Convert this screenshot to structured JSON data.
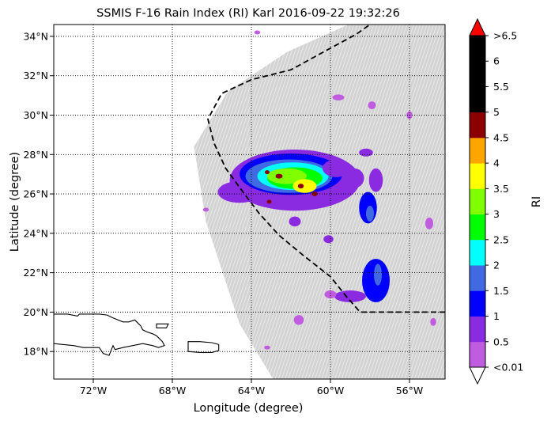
{
  "chart_data": {
    "type": "map",
    "title": "SSMIS F-16 Rain Index (RI) Karl 2016-09-22 19:32:26",
    "xlabel": "Longitude (degree)",
    "ylabel": "Latitude (degree)",
    "xlim": [
      -74,
      -54.2
    ],
    "ylim": [
      16.6,
      34.6
    ],
    "x_ticks": [
      {
        "value": -72,
        "label": "72°W"
      },
      {
        "value": -68,
        "label": "68°W"
      },
      {
        "value": -64,
        "label": "64°W"
      },
      {
        "value": -60,
        "label": "60°W"
      },
      {
        "value": -56,
        "label": "56°W"
      }
    ],
    "y_ticks": [
      {
        "value": 18,
        "label": "18°N"
      },
      {
        "value": 20,
        "label": "20°N"
      },
      {
        "value": 22,
        "label": "22°N"
      },
      {
        "value": 24,
        "label": "24°N"
      },
      {
        "value": 26,
        "label": "26°N"
      },
      {
        "value": 28,
        "label": "28°N"
      },
      {
        "value": 30,
        "label": "30°N"
      },
      {
        "value": 32,
        "label": "32°N"
      },
      {
        "value": 34,
        "label": "34°N"
      }
    ],
    "grid": true,
    "colorbar": {
      "label": "RI",
      "levels": [
        0.01,
        0.5,
        1,
        1.5,
        2,
        2.5,
        3,
        3.5,
        4,
        4.5,
        5,
        5.5,
        6,
        6.5
      ],
      "tick_labels": [
        "<0.01",
        "0.5",
        "1",
        "1.5",
        "2",
        "2.5",
        "3",
        "3.5",
        "4",
        "4.5",
        "5",
        "5.5",
        "6",
        ">6.5"
      ],
      "colors": [
        "#c05ce0",
        "#8a2be2",
        "#0000ff",
        "#4169e1",
        "#00ffff",
        "#00ff00",
        "#7fff00",
        "#ffff00",
        "#ffa500",
        "#8b0000",
        "#000000",
        "#000000",
        "#000000"
      ],
      "under_color": "#ffffff",
      "over_color": "#ff0000"
    },
    "swath_color": "#d3d3d3",
    "swath_outline": [
      [
        -66.9,
        28.4
      ],
      [
        -65.2,
        31.2
      ],
      [
        -62.2,
        33.2
      ],
      [
        -59.1,
        34.6
      ],
      [
        -54.2,
        34.6
      ],
      [
        -54.2,
        16.6
      ],
      [
        -62.9,
        16.6
      ],
      [
        -64.6,
        19.4
      ],
      [
        -66.3,
        24.6
      ]
    ],
    "track": [
      [
        -54.2,
        20.0
      ],
      [
        -58.5,
        20.0
      ],
      [
        -59.2,
        20.8
      ],
      [
        -60.0,
        21.8
      ],
      [
        -61.4,
        22.9
      ],
      [
        -62.6,
        23.9
      ],
      [
        -63.6,
        25.0
      ],
      [
        -64.5,
        26.2
      ],
      [
        -65.3,
        27.3
      ],
      [
        -65.9,
        28.6
      ],
      [
        -66.2,
        29.8
      ],
      [
        -65.5,
        31.1
      ],
      [
        -64.0,
        31.8
      ],
      [
        -62.0,
        32.3
      ],
      [
        -60.0,
        33.4
      ],
      [
        -58.7,
        34.1
      ],
      [
        -58.0,
        34.6
      ]
    ],
    "rain_cells": [
      {
        "lon": -61.8,
        "lat": 26.7,
        "ri": 0.7,
        "rx": 3.3,
        "ry": 1.55
      },
      {
        "lon": -64.6,
        "lat": 26.1,
        "ri": 0.7,
        "rx": 1.1,
        "ry": 0.55
      },
      {
        "lon": -62.0,
        "lat": 27.0,
        "ri": 1.2,
        "rx": 2.6,
        "ry": 1.05
      },
      {
        "lon": -62.1,
        "lat": 26.9,
        "ri": 1.7,
        "rx": 2.2,
        "ry": 0.85
      },
      {
        "lon": -61.9,
        "lat": 26.9,
        "ri": 2.2,
        "rx": 1.8,
        "ry": 0.7
      },
      {
        "lon": -61.8,
        "lat": 26.8,
        "ri": 2.7,
        "rx": 1.4,
        "ry": 0.55
      },
      {
        "lon": -62.2,
        "lat": 26.9,
        "ri": 3.2,
        "rx": 1.0,
        "ry": 0.4
      },
      {
        "lon": -61.3,
        "lat": 26.4,
        "ri": 3.7,
        "rx": 0.6,
        "ry": 0.35
      },
      {
        "lon": -62.6,
        "lat": 26.9,
        "ri": 4.7,
        "rx": 0.18,
        "ry": 0.12
      },
      {
        "lon": -61.5,
        "lat": 26.4,
        "ri": 4.7,
        "rx": 0.15,
        "ry": 0.12
      },
      {
        "lon": -60.8,
        "lat": 26.0,
        "ri": 4.7,
        "rx": 0.15,
        "ry": 0.12
      },
      {
        "lon": -63.2,
        "lat": 27.1,
        "ri": 4.7,
        "rx": 0.12,
        "ry": 0.1
      },
      {
        "lon": -63.1,
        "lat": 25.6,
        "ri": 4.7,
        "rx": 0.12,
        "ry": 0.1
      },
      {
        "lon": -59.7,
        "lat": 27.3,
        "ri": 0.7,
        "rx": 0.7,
        "ry": 0.45
      },
      {
        "lon": -58.8,
        "lat": 26.8,
        "ri": 0.7,
        "rx": 0.5,
        "ry": 0.5
      },
      {
        "lon": -57.7,
        "lat": 26.7,
        "ri": 0.7,
        "rx": 0.35,
        "ry": 0.6
      },
      {
        "lon": -58.1,
        "lat": 25.3,
        "ri": 1.2,
        "rx": 0.45,
        "ry": 0.8
      },
      {
        "lon": -58.0,
        "lat": 25.0,
        "ri": 1.7,
        "rx": 0.2,
        "ry": 0.4
      },
      {
        "lon": -58.2,
        "lat": 28.1,
        "ri": 0.7,
        "rx": 0.35,
        "ry": 0.2
      },
      {
        "lon": -61.8,
        "lat": 24.6,
        "ri": 0.7,
        "rx": 0.3,
        "ry": 0.25
      },
      {
        "lon": -60.1,
        "lat": 23.7,
        "ri": 0.7,
        "rx": 0.25,
        "ry": 0.2
      },
      {
        "lon": -55.0,
        "lat": 24.5,
        "ri": 0.2,
        "rx": 0.2,
        "ry": 0.3
      },
      {
        "lon": -57.7,
        "lat": 21.6,
        "ri": 1.2,
        "rx": 0.7,
        "ry": 1.1
      },
      {
        "lon": -57.6,
        "lat": 21.9,
        "ri": 1.7,
        "rx": 0.2,
        "ry": 0.55
      },
      {
        "lon": -59.0,
        "lat": 20.8,
        "ri": 0.7,
        "rx": 0.8,
        "ry": 0.3
      },
      {
        "lon": -60.0,
        "lat": 20.9,
        "ri": 0.2,
        "rx": 0.3,
        "ry": 0.2
      },
      {
        "lon": -61.6,
        "lat": 19.6,
        "ri": 0.2,
        "rx": 0.25,
        "ry": 0.25
      },
      {
        "lon": -59.6,
        "lat": 30.9,
        "ri": 0.2,
        "rx": 0.3,
        "ry": 0.15
      },
      {
        "lon": -57.9,
        "lat": 30.5,
        "ri": 0.2,
        "rx": 0.2,
        "ry": 0.2
      },
      {
        "lon": -56.0,
        "lat": 30.0,
        "ri": 0.2,
        "rx": 0.15,
        "ry": 0.2
      },
      {
        "lon": -63.7,
        "lat": 34.2,
        "ri": 0.2,
        "rx": 0.15,
        "ry": 0.1
      },
      {
        "lon": -66.3,
        "lat": 25.2,
        "ri": 0.2,
        "rx": 0.15,
        "ry": 0.1
      },
      {
        "lon": -63.2,
        "lat": 18.2,
        "ri": 0.2,
        "rx": 0.15,
        "ry": 0.1
      },
      {
        "lon": -54.8,
        "lat": 19.5,
        "ri": 0.2,
        "rx": 0.15,
        "ry": 0.2
      }
    ],
    "land": [
      {
        "name": "hispaniola",
        "coords": [
          [
            -74,
            19.9
          ],
          [
            -73.3,
            19.9
          ],
          [
            -72.8,
            19.8
          ],
          [
            -72.7,
            19.9
          ],
          [
            -72.1,
            19.9
          ],
          [
            -71.7,
            19.9
          ],
          [
            -71.3,
            19.85
          ],
          [
            -71.0,
            19.7
          ],
          [
            -70.5,
            19.5
          ],
          [
            -70.2,
            19.5
          ],
          [
            -69.9,
            19.6
          ],
          [
            -69.6,
            19.3
          ],
          [
            -69.5,
            19.1
          ],
          [
            -69.3,
            19.0
          ],
          [
            -69.0,
            18.9
          ],
          [
            -68.8,
            18.8
          ],
          [
            -68.5,
            18.5
          ],
          [
            -68.4,
            18.3
          ],
          [
            -68.7,
            18.2
          ],
          [
            -69.0,
            18.3
          ],
          [
            -69.5,
            18.4
          ],
          [
            -70.0,
            18.3
          ],
          [
            -70.5,
            18.2
          ],
          [
            -70.9,
            18.1
          ],
          [
            -71.0,
            18.3
          ],
          [
            -71.2,
            17.8
          ],
          [
            -71.5,
            17.9
          ],
          [
            -71.7,
            18.2
          ],
          [
            -72.0,
            18.2
          ],
          [
            -72.5,
            18.2
          ],
          [
            -73.0,
            18.3
          ],
          [
            -74,
            18.4
          ]
        ]
      },
      {
        "name": "puerto-rico",
        "coords": [
          [
            -67.2,
            18.5
          ],
          [
            -66.6,
            18.5
          ],
          [
            -66.0,
            18.45
          ],
          [
            -65.65,
            18.35
          ],
          [
            -65.65,
            18.05
          ],
          [
            -66.0,
            17.95
          ],
          [
            -66.6,
            17.95
          ],
          [
            -67.2,
            18.0
          ],
          [
            -67.2,
            18.5
          ]
        ]
      },
      {
        "name": "island",
        "coords": [
          [
            -68.8,
            19.4
          ],
          [
            -68.2,
            19.4
          ],
          [
            -68.3,
            19.2
          ],
          [
            -68.8,
            19.2
          ],
          [
            -68.8,
            19.4
          ]
        ]
      }
    ]
  }
}
